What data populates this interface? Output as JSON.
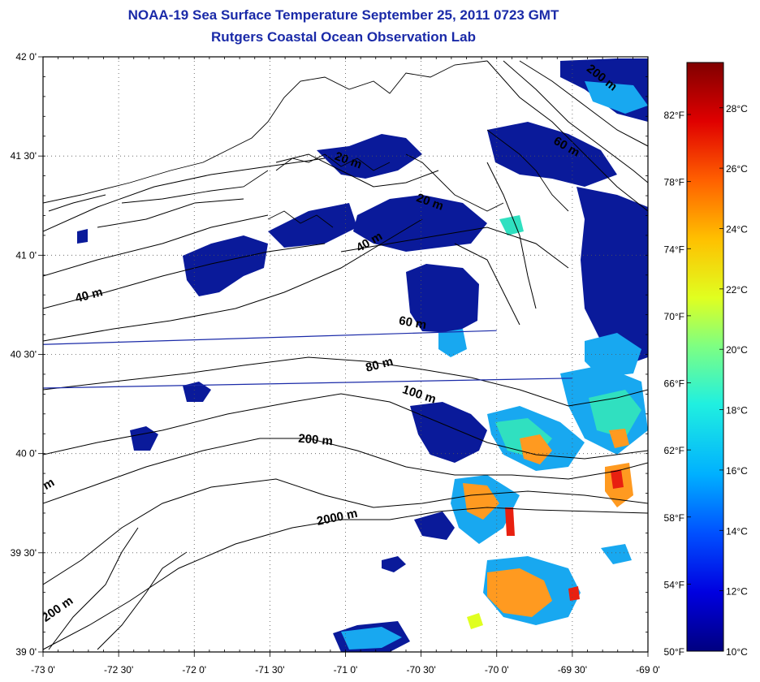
{
  "title": "NOAA-19 Sea Surface Temperature September 25, 2011 0723 GMT",
  "subtitle": "Rutgers Coastal Ocean Observation Lab",
  "colors": {
    "title": "#1a2aa8",
    "land_cloud": "#ffffff",
    "contour": "#000000",
    "track": "#1a2aa8"
  },
  "map": {
    "lon_range": [
      -73.0,
      -69.0
    ],
    "lat_range": [
      39.0,
      42.0
    ],
    "lon_labels": [
      "-73 0'",
      "-72 30'",
      "-72 0'",
      "-71 30'",
      "-71 0'",
      "-70 30'",
      "-70 0'",
      "-69 30'",
      "-69 0'"
    ],
    "lat_labels": [
      "42 0'",
      "41 30'",
      "41 0'",
      "40 30'",
      "40 0'",
      "39 30'",
      "39 0'"
    ],
    "depth_labels": [
      {
        "text": "200 m",
        "lon": -69.32,
        "lat": 41.88,
        "rot": 38
      },
      {
        "text": "60 m",
        "lon": -69.55,
        "lat": 41.53,
        "rot": 30
      },
      {
        "text": "20 m",
        "lon": -70.99,
        "lat": 41.46,
        "rot": 20
      },
      {
        "text": "20 m",
        "lon": -70.45,
        "lat": 41.25,
        "rot": 20
      },
      {
        "text": "40 m",
        "lon": -70.83,
        "lat": 41.05,
        "rot": -30
      },
      {
        "text": "40 m",
        "lon": -72.69,
        "lat": 40.78,
        "rot": -15
      },
      {
        "text": "60 m",
        "lon": -70.56,
        "lat": 40.64,
        "rot": 10
      },
      {
        "text": "80 m",
        "lon": -70.77,
        "lat": 40.43,
        "rot": -15
      },
      {
        "text": "100 m",
        "lon": -70.52,
        "lat": 40.28,
        "rot": 18
      },
      {
        "text": "200 m",
        "lon": -71.2,
        "lat": 40.05,
        "rot": 5
      },
      {
        "text": "2000 m",
        "lon": -71.05,
        "lat": 39.66,
        "rot": -12
      },
      {
        "text": "200 m",
        "lon": -72.89,
        "lat": 39.2,
        "rot": -35
      },
      {
        "text": "m",
        "lon": -72.95,
        "lat": 39.83,
        "rot": -30
      }
    ],
    "tracks": [
      {
        "from": [
          -73.0,
          40.55
        ],
        "to": [
          -70.0,
          40.62
        ]
      },
      {
        "from": [
          -73.0,
          40.33
        ],
        "to": [
          -69.5,
          40.38
        ]
      }
    ]
  },
  "colorbar": {
    "celsius_labels": [
      "28°C",
      "26°C",
      "24°C",
      "22°C",
      "20°C",
      "18°C",
      "16°C",
      "14°C",
      "12°C",
      "10°C"
    ],
    "fahrenheit_labels": [
      "82°F",
      "78°F",
      "74°F",
      "70°F",
      "66°F",
      "62°F",
      "58°F",
      "54°F",
      "50°F"
    ],
    "stops": [
      "#000080",
      "#0000e0",
      "#0050ff",
      "#00b0ff",
      "#20f0e0",
      "#80ff80",
      "#e0ff20",
      "#ffc000",
      "#ff6000",
      "#e00000",
      "#800000"
    ]
  }
}
